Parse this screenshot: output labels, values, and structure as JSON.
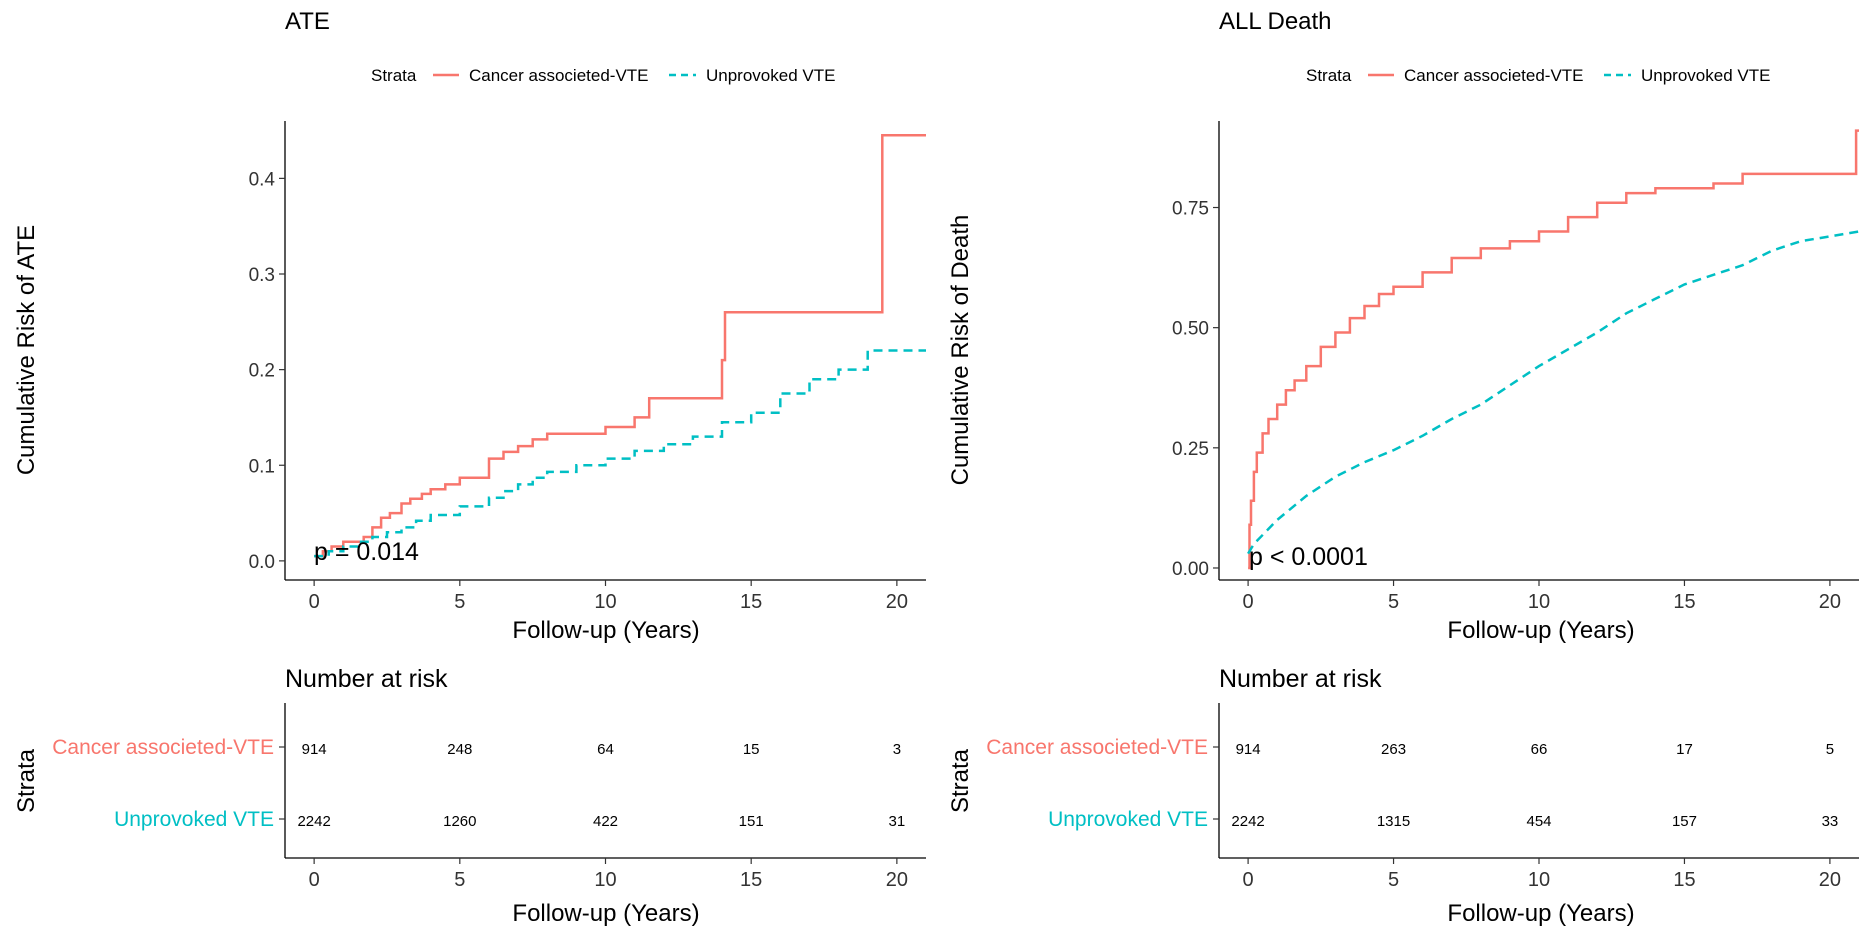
{
  "colors": {
    "cancer": "#F8766D",
    "unprovoked": "#00BFC4",
    "axis": "#000000"
  },
  "panels": [
    {
      "title": "ATE",
      "legend": {
        "title": "Strata",
        "items": [
          "Cancer associeted-VTE",
          "Unprovoked VTE"
        ]
      },
      "pvalue": "p = 0.014",
      "risk_title": "Number at risk",
      "strata_axis_label": "Strata",
      "risk_rows": [
        {
          "label": "Cancer associeted-VTE",
          "values": [
            "914",
            "248",
            "64",
            "15",
            "3"
          ]
        },
        {
          "label": "Unprovoked VTE",
          "values": [
            "2242",
            "1260",
            "422",
            "151",
            "31"
          ]
        }
      ]
    },
    {
      "title": "ALL Death",
      "legend": {
        "title": "Strata",
        "items": [
          "Cancer associeted-VTE",
          "Unprovoked VTE"
        ]
      },
      "pvalue": "p < 0.0001",
      "risk_title": "Number at risk",
      "strata_axis_label": "Strata",
      "risk_rows": [
        {
          "label": "Cancer associeted-VTE",
          "values": [
            "914",
            "263",
            "66",
            "17",
            "5"
          ]
        },
        {
          "label": "Unprovoked VTE",
          "values": [
            "2242",
            "1315",
            "454",
            "157",
            "33"
          ]
        }
      ]
    }
  ],
  "chart_data": [
    {
      "type": "line",
      "title": "ATE",
      "xlabel": "Follow-up (Years)",
      "ylabel": "Cumulative Risk of ATE",
      "xlim": [
        -1,
        21
      ],
      "ylim": [
        -0.02,
        0.46
      ],
      "xticks": [
        "0",
        "5",
        "10",
        "15",
        "20"
      ],
      "yticks": [
        "0.0",
        "0.1",
        "0.2",
        "0.3",
        "0.4"
      ],
      "series": [
        {
          "name": "Cancer associeted-VTE",
          "step": true,
          "dashed": false,
          "x": [
            0,
            0.3,
            0.6,
            1.0,
            1.7,
            2.0,
            2.3,
            2.6,
            3.0,
            3.3,
            3.7,
            4.0,
            4.5,
            5.0,
            6.0,
            6.5,
            7.0,
            7.5,
            8.0,
            10.0,
            11.0,
            11.5,
            14.0,
            14.1,
            19.5,
            21
          ],
          "y": [
            0.005,
            0.01,
            0.015,
            0.02,
            0.025,
            0.035,
            0.045,
            0.05,
            0.06,
            0.065,
            0.07,
            0.075,
            0.08,
            0.087,
            0.107,
            0.114,
            0.12,
            0.127,
            0.133,
            0.14,
            0.15,
            0.17,
            0.21,
            0.26,
            0.445,
            0.445
          ]
        },
        {
          "name": "Unprovoked VTE",
          "step": true,
          "dashed": true,
          "x": [
            0,
            0.5,
            1.0,
            1.5,
            2.0,
            2.5,
            3.0,
            3.5,
            4.0,
            5.0,
            6.0,
            6.5,
            7.0,
            7.5,
            8.0,
            9.0,
            10.0,
            11.0,
            12.0,
            13.0,
            14.0,
            15.0,
            16.0,
            17.0,
            18.0,
            19.0,
            21
          ],
          "y": [
            0.005,
            0.01,
            0.015,
            0.02,
            0.025,
            0.03,
            0.035,
            0.042,
            0.048,
            0.057,
            0.066,
            0.073,
            0.08,
            0.087,
            0.093,
            0.1,
            0.107,
            0.115,
            0.122,
            0.13,
            0.145,
            0.155,
            0.175,
            0.19,
            0.2,
            0.22,
            0.22
          ]
        }
      ]
    },
    {
      "type": "line",
      "title": "ALL Death",
      "xlabel": "Follow-up (Years)",
      "ylabel": "Cumulative Risk of Death",
      "xlim": [
        -1,
        21
      ],
      "ylim": [
        -0.025,
        0.93
      ],
      "xticks": [
        "0",
        "5",
        "10",
        "15",
        "20"
      ],
      "yticks": [
        "0.00",
        "0.25",
        "0.50",
        "0.75"
      ],
      "series": [
        {
          "name": "Cancer associeted-VTE",
          "step": true,
          "dashed": false,
          "x": [
            0,
            0.05,
            0.1,
            0.2,
            0.3,
            0.5,
            0.7,
            1.0,
            1.3,
            1.6,
            2.0,
            2.5,
            3.0,
            3.5,
            4.0,
            4.5,
            5.0,
            6.0,
            7.0,
            8.0,
            9.0,
            10.0,
            11.0,
            12.0,
            13.0,
            14.0,
            16.0,
            17.0,
            19.0,
            20.8,
            20.9,
            21
          ],
          "y": [
            0.0,
            0.09,
            0.14,
            0.2,
            0.24,
            0.28,
            0.31,
            0.34,
            0.37,
            0.39,
            0.42,
            0.46,
            0.49,
            0.52,
            0.545,
            0.57,
            0.585,
            0.615,
            0.645,
            0.665,
            0.68,
            0.7,
            0.73,
            0.76,
            0.78,
            0.79,
            0.8,
            0.82,
            0.82,
            0.82,
            0.91,
            0.91
          ]
        },
        {
          "name": "Unprovoked VTE",
          "step": false,
          "dashed": true,
          "x": [
            0,
            0.2,
            1.0,
            2.0,
            3.0,
            4.0,
            5.0,
            6.0,
            7.0,
            8.0,
            9.0,
            10.0,
            11.0,
            12.0,
            13.0,
            14.0,
            15.0,
            16.0,
            17.0,
            18.0,
            19.0,
            20.0,
            21.0
          ],
          "y": [
            0.03,
            0.05,
            0.1,
            0.15,
            0.19,
            0.22,
            0.245,
            0.275,
            0.31,
            0.34,
            0.38,
            0.42,
            0.455,
            0.49,
            0.53,
            0.56,
            0.59,
            0.61,
            0.63,
            0.66,
            0.68,
            0.69,
            0.7
          ]
        }
      ]
    }
  ]
}
